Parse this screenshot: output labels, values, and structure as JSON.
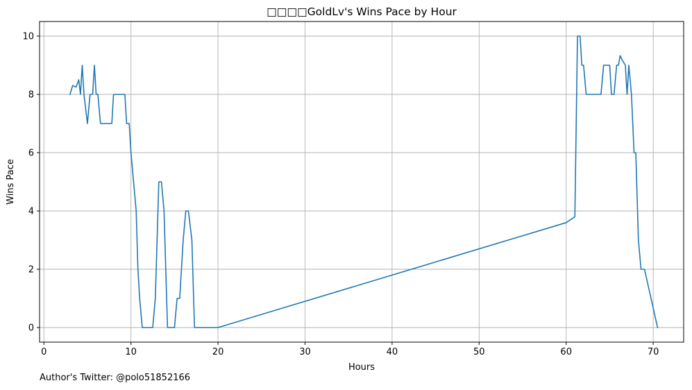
{
  "chart_data": {
    "type": "line",
    "title": "□□□□GoldLv's Wins Pace by Hour",
    "xlabel": "Hours",
    "ylabel": "Wins Pace",
    "xlim": [
      -0.5,
      73.5
    ],
    "ylim": [
      -0.5,
      10.5
    ],
    "xticks": [
      0,
      10,
      20,
      30,
      40,
      50,
      60,
      70
    ],
    "yticks": [
      0,
      2,
      4,
      6,
      8,
      10
    ],
    "grid": true,
    "colors": {
      "line": "#1f77b4",
      "grid": "#b0b0b0"
    },
    "series": [
      {
        "x": [
          3.0,
          3.3,
          3.7,
          4.0,
          4.2,
          4.4,
          4.6,
          5.0,
          5.3,
          5.6,
          5.8,
          6.0,
          6.2,
          6.5,
          7.0,
          7.5,
          7.8,
          8.0,
          8.5,
          9.0,
          9.3,
          9.5,
          9.8,
          10.0,
          10.3,
          10.6,
          10.8,
          11.0,
          11.3,
          12.0,
          12.5,
          12.8,
          13.2,
          13.5,
          13.8,
          14.0,
          14.2,
          14.5,
          15.0,
          15.3,
          15.6,
          16.0,
          16.3,
          16.6,
          17.0,
          17.3,
          19.0,
          20.0,
          60.0,
          61.0,
          61.3,
          61.6,
          61.8,
          62.0,
          62.3,
          62.6,
          63.0,
          63.5,
          64.0,
          64.3,
          64.6,
          65.0,
          65.2,
          65.5,
          65.8,
          66.0,
          66.2,
          66.4,
          66.8,
          67.0,
          67.2,
          67.5,
          67.8,
          68.0,
          68.3,
          68.6,
          69.0,
          70.5
        ],
        "y": [
          8.0,
          8.3,
          8.25,
          8.5,
          8.0,
          9.0,
          8.0,
          7.0,
          8.0,
          8.0,
          9.0,
          8.0,
          8.0,
          7.0,
          7.0,
          7.0,
          7.0,
          8.0,
          8.0,
          8.0,
          8.0,
          7.0,
          7.0,
          6.0,
          5.0,
          4.0,
          2.0,
          1.0,
          0.0,
          0.0,
          0.0,
          1.0,
          5.0,
          5.0,
          4.0,
          2.0,
          0.0,
          0.0,
          0.0,
          1.0,
          1.0,
          3.0,
          4.0,
          4.0,
          3.0,
          0.0,
          0.0,
          0.0,
          3.6,
          3.8,
          10.0,
          10.0,
          9.0,
          9.0,
          8.0,
          8.0,
          8.0,
          8.0,
          8.0,
          9.0,
          9.0,
          9.0,
          8.0,
          8.0,
          9.0,
          9.0,
          9.33,
          9.2,
          9.0,
          8.0,
          9.0,
          8.0,
          6.0,
          6.0,
          3.0,
          2.0,
          2.0,
          0.0
        ]
      }
    ]
  },
  "footer": {
    "author": "Author's Twitter: @polo51852166"
  }
}
